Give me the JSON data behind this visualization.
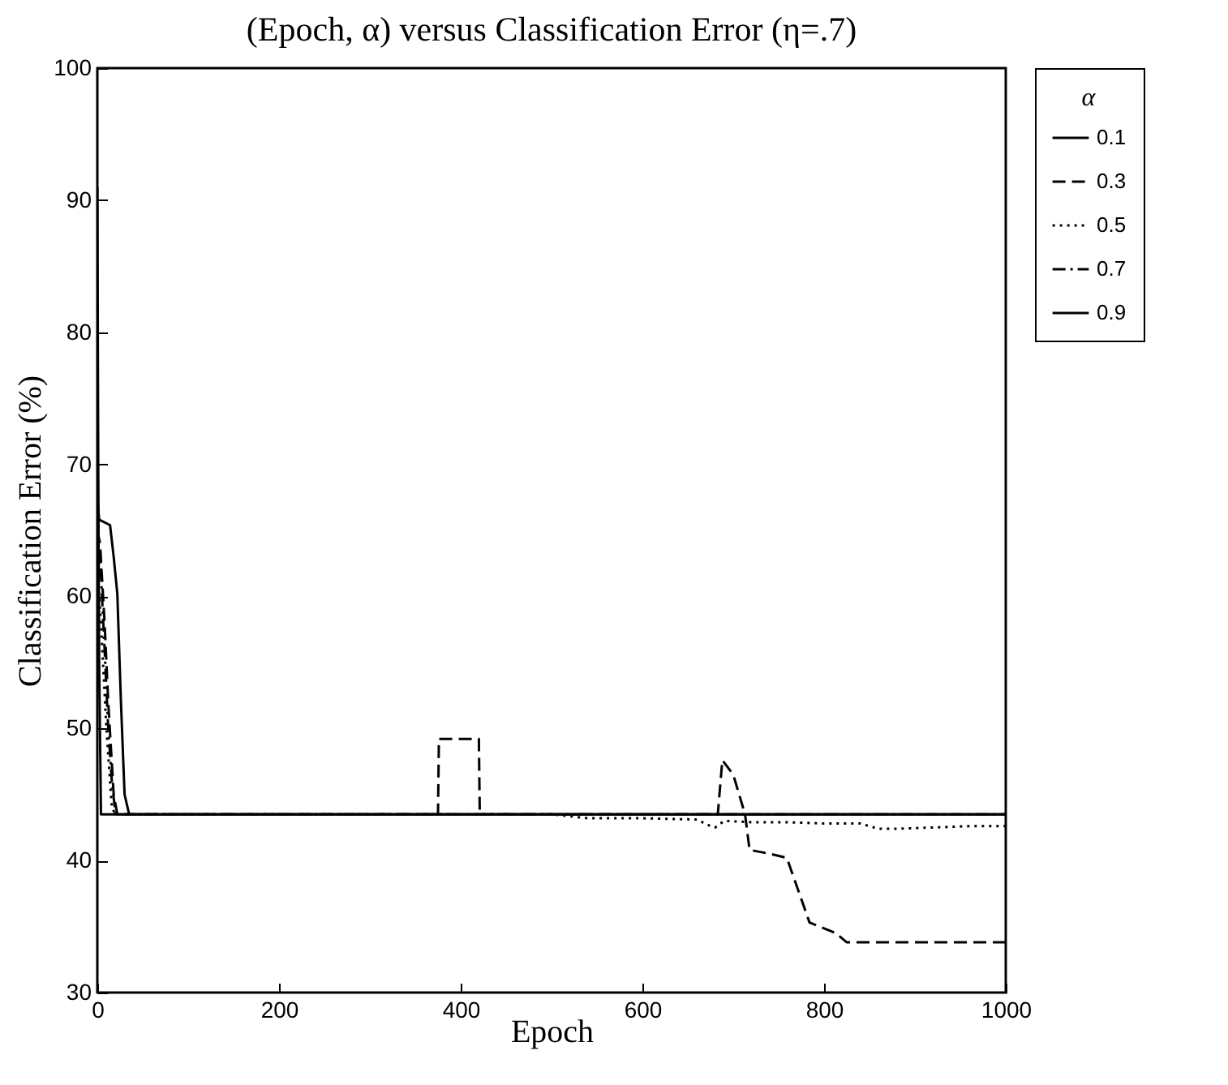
{
  "chart_data": {
    "type": "line",
    "title": "(Epoch, α) versus Classification Error (η=.7)",
    "xlabel": "Epoch",
    "ylabel": "Classification Error (%)",
    "legend_title": "α",
    "xlim": [
      0,
      1000
    ],
    "xticks": [
      0,
      200,
      400,
      600,
      800,
      1000
    ],
    "ylim": [
      30,
      100
    ],
    "yticks": [
      30,
      40,
      50,
      60,
      70,
      80,
      90,
      100
    ],
    "grid": false,
    "legend": "right",
    "marker": "none",
    "series": [
      {
        "name": "0.1",
        "color": "#000000",
        "line_style": "solid",
        "x": [
          0,
          2,
          14,
          18,
          22,
          26,
          30,
          35,
          1000
        ],
        "values": [
          67.4,
          65.8,
          65.4,
          63,
          60.2,
          52,
          45,
          43.5,
          43.5
        ]
      },
      {
        "name": "0.3",
        "color": "#000000",
        "line_style": "dashed",
        "x": [
          0,
          3,
          8,
          12,
          18,
          22,
          375,
          376,
          420,
          421,
          683,
          688,
          700,
          713,
          718,
          741,
          759,
          784,
          813,
          825,
          1000
        ],
        "values": [
          65,
          64,
          58,
          52,
          45,
          43.5,
          43.5,
          49.2,
          49.2,
          43.5,
          43.5,
          47.6,
          46.5,
          43.5,
          40.8,
          40.5,
          40.2,
          35.3,
          34.5,
          33.8,
          33.8
        ]
      },
      {
        "name": "0.5",
        "color": "#000000",
        "line_style": "dotted",
        "x": [
          0,
          4,
          10,
          16,
          20,
          500,
          540,
          600,
          660,
          675,
          680,
          690,
          720,
          760,
          800,
          840,
          860,
          880,
          920,
          960,
          1000
        ],
        "values": [
          62,
          58,
          50,
          44,
          43.5,
          43.5,
          43.2,
          43.2,
          43.1,
          42.6,
          42.5,
          43.0,
          42.9,
          42.9,
          42.8,
          42.8,
          42.4,
          42.4,
          42.5,
          42.6,
          42.6
        ]
      },
      {
        "name": "0.7",
        "color": "#000000",
        "line_style": "dashdot",
        "x": [
          0,
          3,
          8,
          12,
          16,
          20,
          1000
        ],
        "values": [
          64,
          63,
          56,
          50,
          46,
          43.5,
          43.5
        ]
      },
      {
        "name": "0.9",
        "color": "#000000",
        "line_style": "solid",
        "x": [
          0,
          1,
          2,
          4,
          1000
        ],
        "values": [
          91,
          70,
          55,
          43.5,
          43.5
        ]
      }
    ]
  }
}
